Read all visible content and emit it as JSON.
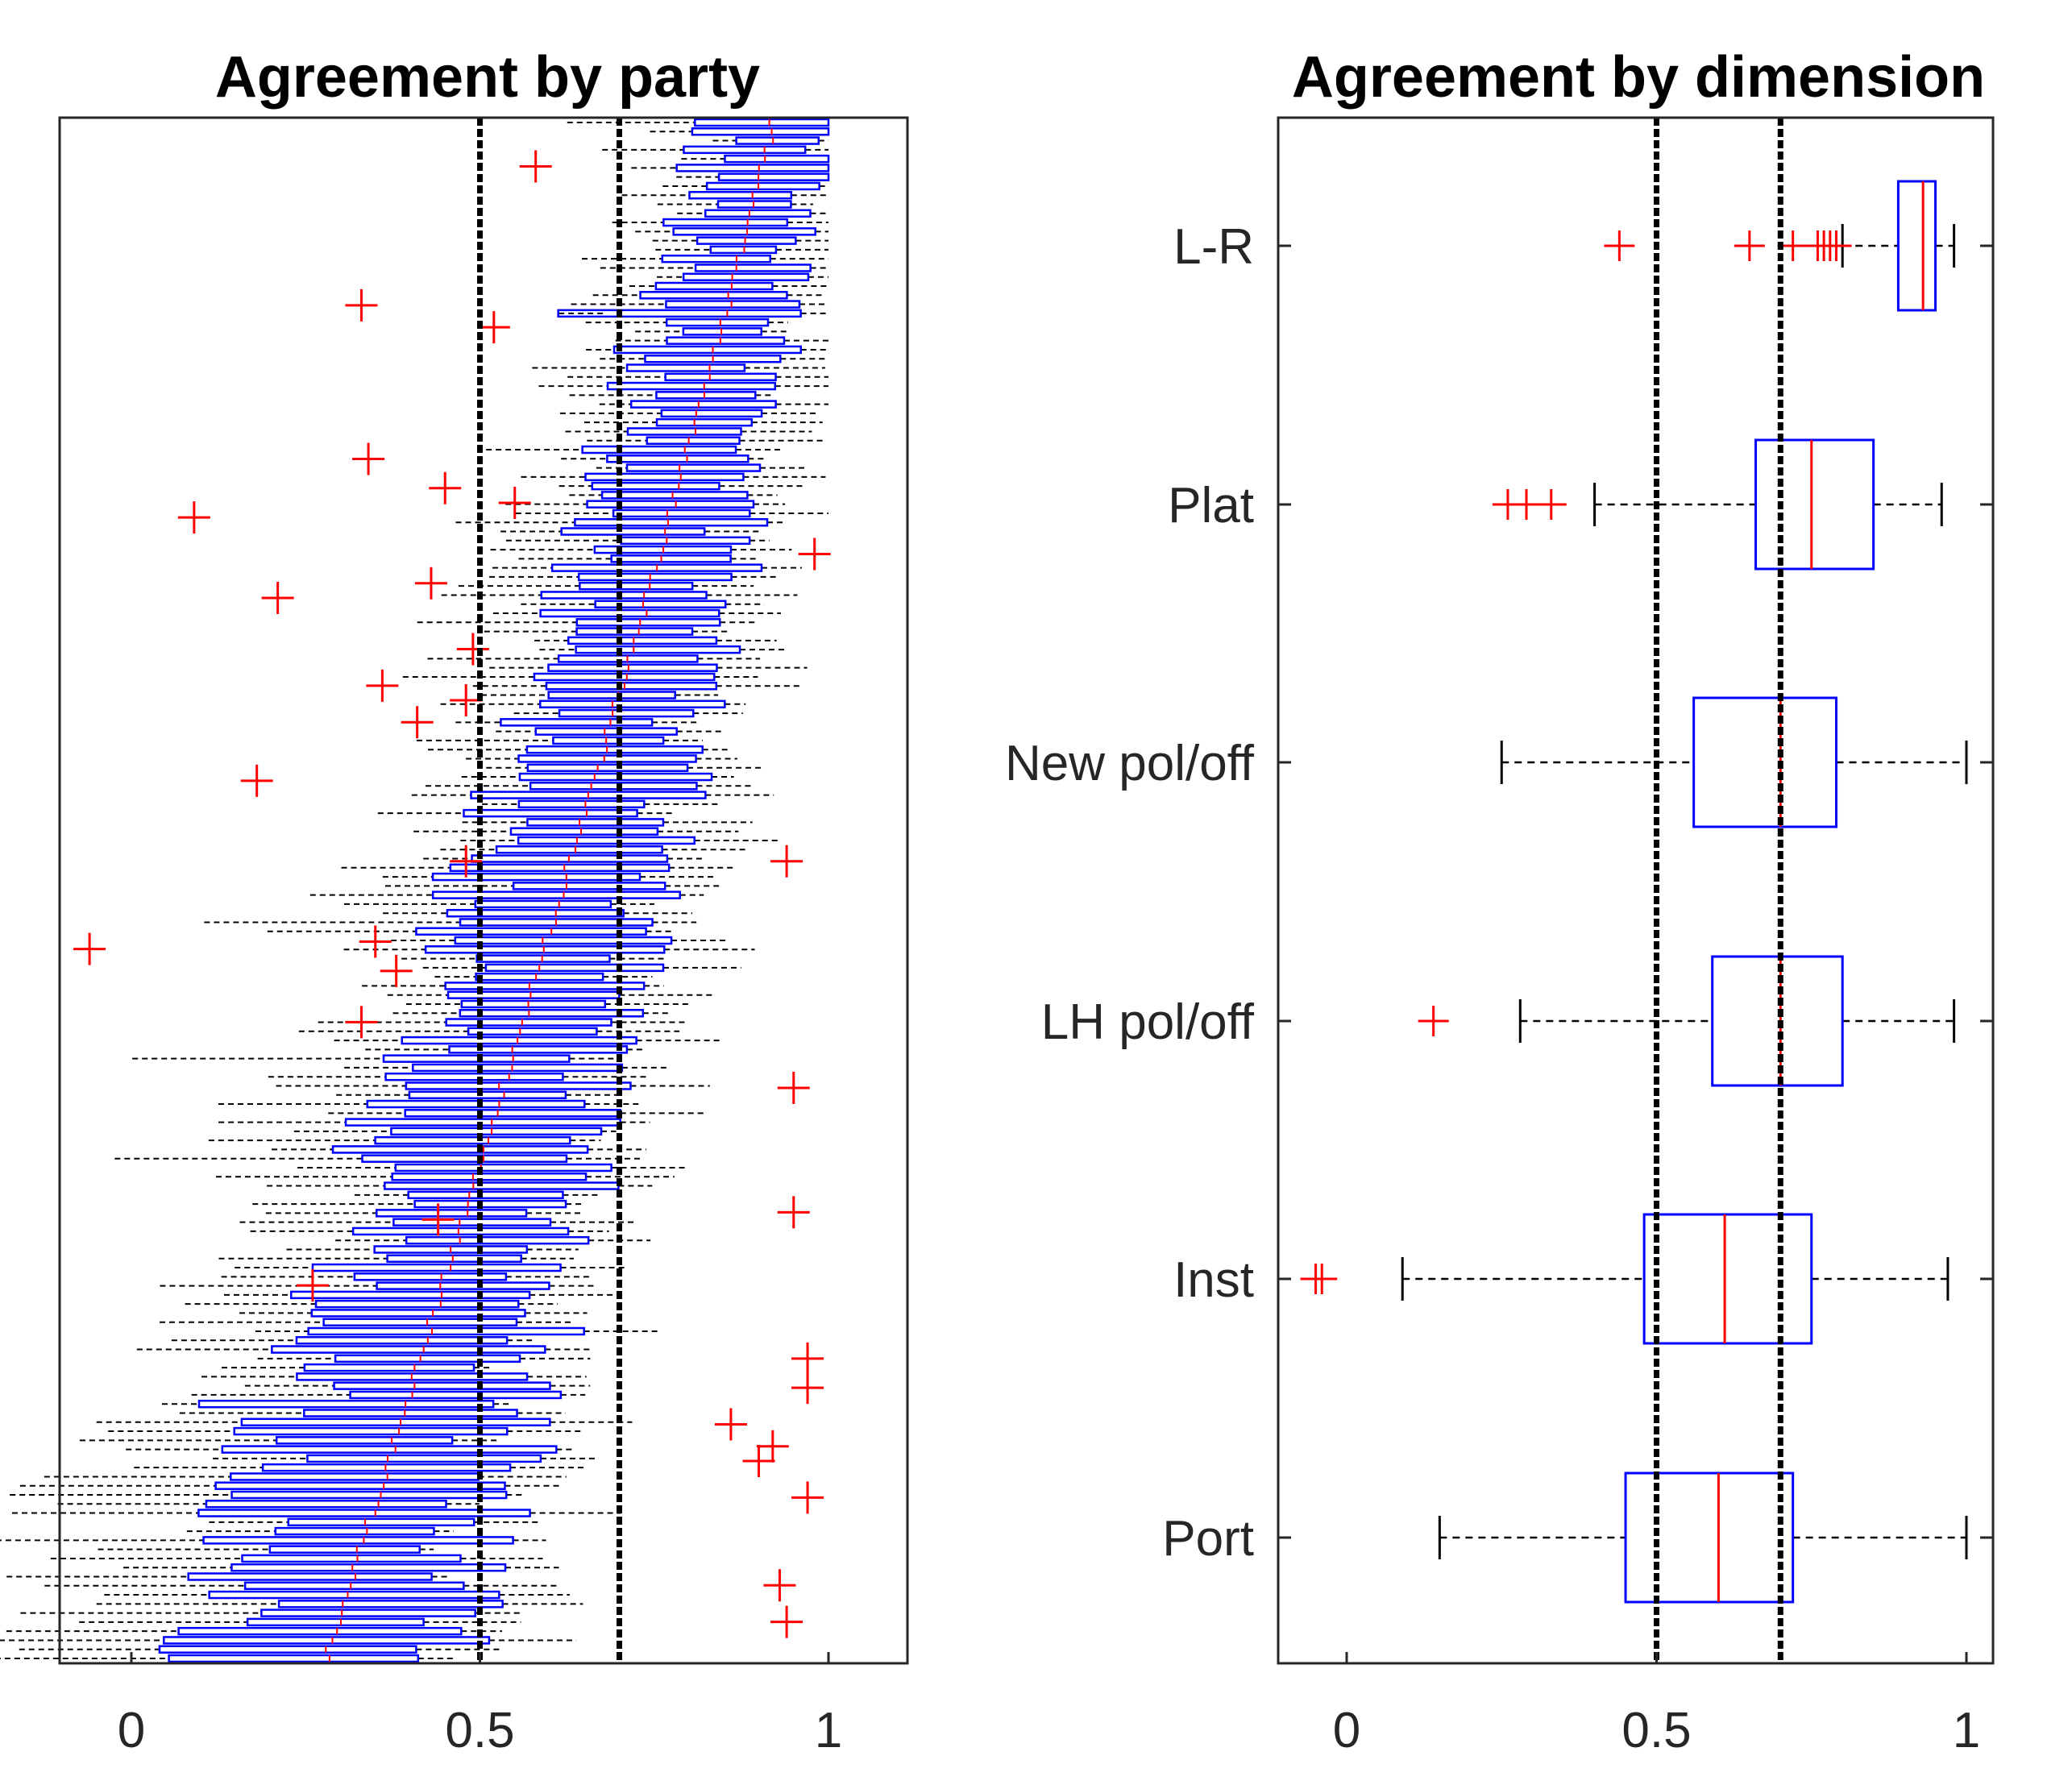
{
  "chart_data": [
    {
      "type": "boxplot",
      "orientation": "horizontal",
      "title": "Agreement by party",
      "xlim": [
        -0.11,
        1.12
      ],
      "xticks": [
        0,
        0.5,
        1
      ],
      "xtick_labels": [
        "0",
        "0.5",
        "1"
      ],
      "reference_lines": [
        0.5,
        0.7
      ],
      "n_boxes": 170,
      "median_range": [
        0.28,
        0.92
      ],
      "outliers": [
        {
          "x": 0.58,
          "row": 6
        },
        {
          "x": 0.33,
          "row": 25
        },
        {
          "x": 0.52,
          "row": 28
        },
        {
          "x": 0.34,
          "row": 46
        },
        {
          "x": 0.45,
          "row": 50
        },
        {
          "x": 0.55,
          "row": 52
        },
        {
          "x": 0.09,
          "row": 54
        },
        {
          "x": 0.98,
          "row": 59
        },
        {
          "x": 0.43,
          "row": 63
        },
        {
          "x": 0.21,
          "row": 65
        },
        {
          "x": 0.49,
          "row": 72
        },
        {
          "x": 0.36,
          "row": 77
        },
        {
          "x": 0.48,
          "row": 79
        },
        {
          "x": 0.41,
          "row": 82
        },
        {
          "x": 0.18,
          "row": 90
        },
        {
          "x": 0.48,
          "row": 101
        },
        {
          "x": 0.94,
          "row": 101
        },
        {
          "x": -0.06,
          "row": 113
        },
        {
          "x": 0.35,
          "row": 112
        },
        {
          "x": 0.38,
          "row": 116
        },
        {
          "x": 0.33,
          "row": 123
        },
        {
          "x": 0.95,
          "row": 132
        },
        {
          "x": 0.44,
          "row": 150
        },
        {
          "x": 0.95,
          "row": 149
        },
        {
          "x": 0.26,
          "row": 159
        },
        {
          "x": 0.97,
          "row": 169
        },
        {
          "x": 0.97,
          "row": 173
        },
        {
          "x": 0.86,
          "row": 178
        },
        {
          "x": 0.92,
          "row": 181
        },
        {
          "x": 0.9,
          "row": 183
        },
        {
          "x": 0.97,
          "row": 188
        },
        {
          "x": 0.93,
          "row": 200
        },
        {
          "x": 0.94,
          "row": 205
        }
      ]
    },
    {
      "type": "boxplot",
      "orientation": "horizontal",
      "title": "Agreement by dimension",
      "xlim": [
        -0.11,
        1.06
      ],
      "xticks": [
        0,
        0.5,
        1
      ],
      "xtick_labels": [
        "0",
        "0.5",
        "1"
      ],
      "reference_lines": [
        0.5,
        0.7
      ],
      "categories": [
        "L-R",
        "Plat",
        "New pol/off",
        "LH pol/off",
        "Inst",
        "Port"
      ],
      "boxes": [
        {
          "label": "L-R",
          "whisker_low": 0.8,
          "q1": 0.89,
          "median": 0.93,
          "q3": 0.95,
          "whisker_high": 0.98,
          "outliers": [
            0.44,
            0.65,
            0.72,
            0.76,
            0.77,
            0.78,
            0.79
          ]
        },
        {
          "label": "Plat",
          "whisker_low": 0.4,
          "q1": 0.66,
          "median": 0.75,
          "q3": 0.85,
          "whisker_high": 0.96,
          "outliers": [
            0.26,
            0.29,
            0.33
          ]
        },
        {
          "label": "New pol/off",
          "whisker_low": 0.25,
          "q1": 0.56,
          "median": 0.7,
          "q3": 0.79,
          "whisker_high": 1.0,
          "outliers": []
        },
        {
          "label": "LH pol/off",
          "whisker_low": 0.28,
          "q1": 0.59,
          "median": 0.7,
          "q3": 0.8,
          "whisker_high": 0.98,
          "outliers": [
            0.14
          ]
        },
        {
          "label": "Inst",
          "whisker_low": 0.09,
          "q1": 0.48,
          "median": 0.61,
          "q3": 0.75,
          "whisker_high": 0.97,
          "outliers": [
            -0.05,
            -0.04
          ]
        },
        {
          "label": "Port",
          "whisker_low": 0.15,
          "q1": 0.45,
          "median": 0.6,
          "q3": 0.72,
          "whisker_high": 1.0,
          "outliers": []
        }
      ]
    }
  ]
}
